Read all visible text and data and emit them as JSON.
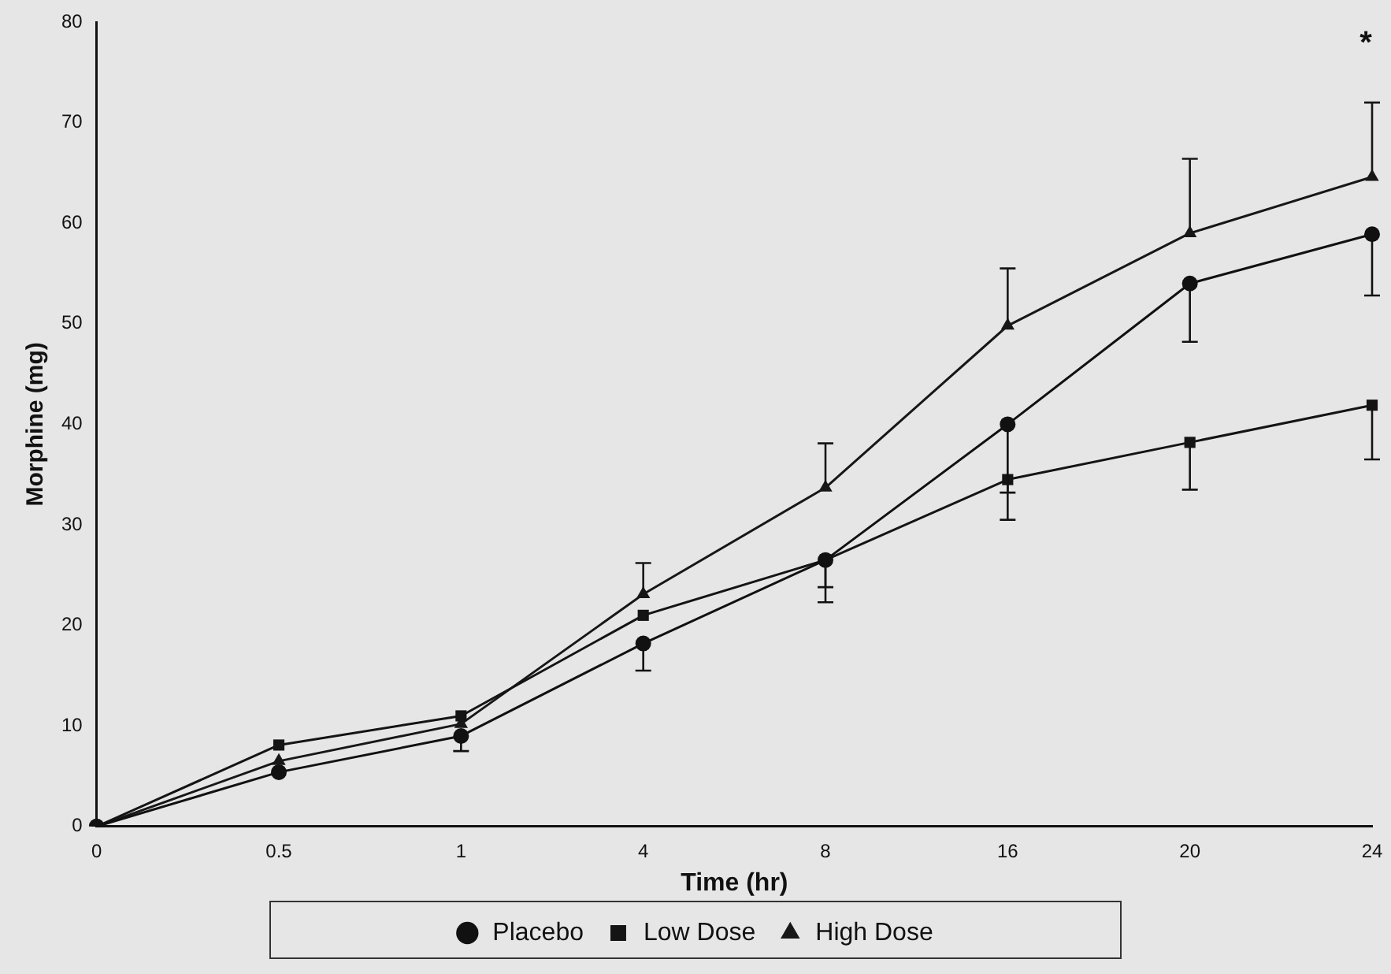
{
  "chart_data": {
    "type": "line",
    "xlabel": "Time (hr)",
    "ylabel": "Morphine (mg)",
    "categories": [
      "0",
      "0.5",
      "1",
      "4",
      "8",
      "16",
      "20",
      "24"
    ],
    "ylim": [
      0,
      80
    ],
    "yticks": [
      0,
      10,
      20,
      30,
      40,
      50,
      60,
      70,
      80
    ],
    "grid": false,
    "legend": "bottom",
    "line_style": "solid",
    "series": [
      {
        "name": "Placebo",
        "color": "#111111",
        "marker": "circle",
        "values": [
          0,
          5.4,
          9,
          18.2,
          26.5,
          40,
          54,
          58.9
        ],
        "errors": [
          null,
          null,
          [
            7.5,
            9
          ],
          [
            15.5,
            18.2
          ],
          [
            22.3,
            26.5
          ],
          [
            33.2,
            40
          ],
          [
            48.2,
            54
          ],
          [
            52.8,
            58.9
          ]
        ]
      },
      {
        "name": "Low Dose",
        "color": "#141414",
        "marker": "square",
        "values": [
          0,
          8.1,
          11,
          21,
          26.5,
          34.5,
          38.2,
          41.9
        ],
        "errors": [
          null,
          null,
          null,
          null,
          [
            23.8,
            26.5
          ],
          [
            30.5,
            34.5
          ],
          [
            33.5,
            38.2
          ],
          [
            36.5,
            41.9
          ]
        ]
      },
      {
        "name": "High Dose",
        "color": "#171717",
        "marker": "triangle",
        "values": [
          0,
          6.5,
          10.2,
          23.1,
          33.7,
          49.8,
          59,
          64.6
        ],
        "errors": [
          null,
          null,
          null,
          [
            23.1,
            26.2
          ],
          [
            33.7,
            38.1
          ],
          [
            49.8,
            55.5
          ],
          [
            59,
            66.4
          ],
          [
            64.6,
            72
          ]
        ]
      }
    ],
    "annotations": [
      "*"
    ]
  }
}
